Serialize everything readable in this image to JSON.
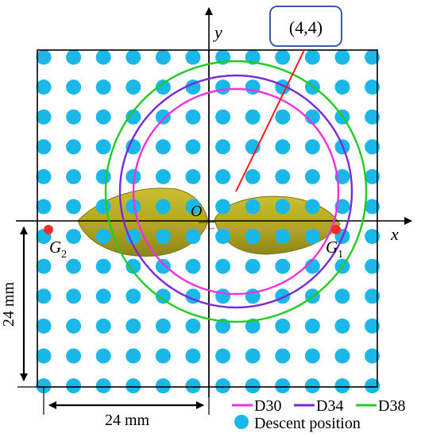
{
  "diagram": {
    "callout_label": "(4,4)",
    "origin_label": "O",
    "x_axis_label": "x",
    "y_axis_label": "y",
    "point_g1": {
      "letter": "G",
      "subscript": "1"
    },
    "point_g2": {
      "letter": "G",
      "subscript": "2"
    },
    "dim_horizontal": "24 mm",
    "dim_vertical": "24 mm",
    "grid": {
      "rows": 12,
      "cols": 12
    },
    "circles": [
      {
        "name": "D30",
        "color": "#ee33dd"
      },
      {
        "name": "D34",
        "color": "#7a2ad8"
      },
      {
        "name": "D38",
        "color": "#22cc22"
      }
    ],
    "dot_color": "#1ab8e8",
    "legend": {
      "d30": "D30",
      "d34": "D34",
      "d38": "D38",
      "descent": "Descent position"
    }
  }
}
